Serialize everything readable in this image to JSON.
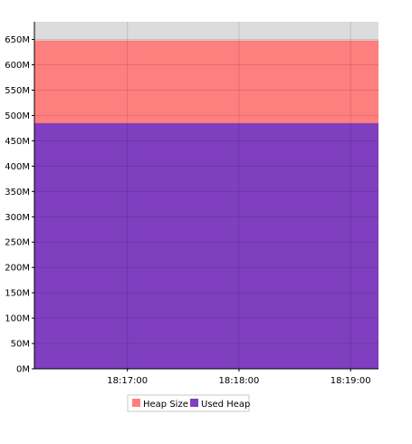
{
  "chart_data": {
    "type": "area",
    "x_ticks": [
      "18:17:00",
      "18:18:00",
      "18:19:00"
    ],
    "y_ticks": [
      "0M",
      "50M",
      "100M",
      "150M",
      "200M",
      "250M",
      "300M",
      "350M",
      "400M",
      "450M",
      "500M",
      "550M",
      "600M",
      "650M"
    ],
    "ylim": [
      0,
      685
    ],
    "grid": true,
    "legend_placement": "bottom-center",
    "series": [
      {
        "name": "Heap Size",
        "color": "#ff7f7f",
        "values": [
          648,
          648,
          648,
          648,
          648
        ]
      },
      {
        "name": "Used Heap",
        "color": "#7f3fbf",
        "values": [
          485,
          485,
          485,
          485,
          485
        ]
      }
    ],
    "x": [
      "18:16:10",
      "18:17:00",
      "18:18:00",
      "18:19:00",
      "18:19:15"
    ],
    "background_color": "#dcdcdc"
  }
}
